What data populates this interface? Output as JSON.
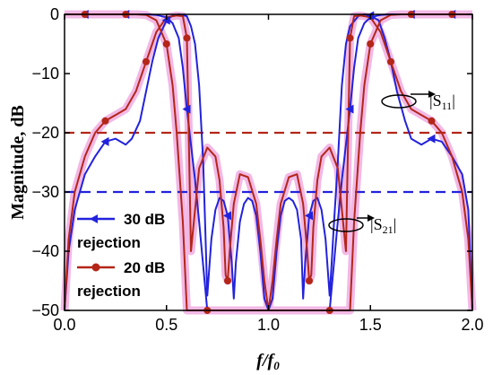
{
  "chart_data": {
    "type": "line",
    "xlabel": "f/f",
    "xlabel_sub": "0",
    "ylabel": "Magnitude, dB",
    "xlim": [
      0.0,
      2.0
    ],
    "ylim": [
      -50,
      0
    ],
    "xticks": [
      "0.0",
      "0.5",
      "1.0",
      "1.5",
      "2.0"
    ],
    "yticks": [
      "0",
      "−10",
      "−20",
      "−30",
      "−40",
      "−50"
    ],
    "grid": false,
    "legend_position": "bottom-left",
    "colors": {
      "blue": "#2222dd",
      "red": "#b32618",
      "highlight": "#f2b8e6"
    },
    "series": [
      {
        "name": "30 dB rejection",
        "name_line1": "30 dB",
        "name_line2": "rejection",
        "color": "#2222dd",
        "marker": "triangle-left",
        "s21": {
          "x": [
            0.0,
            0.02,
            0.05,
            0.1,
            0.15,
            0.2,
            0.25,
            0.3,
            0.33,
            0.37,
            0.4,
            0.43,
            0.46,
            0.5,
            0.53,
            0.56,
            0.6,
            0.62,
            0.64,
            0.66,
            0.68,
            0.69,
            0.7,
            0.72,
            0.74,
            0.76,
            0.78,
            0.8,
            0.82,
            0.83,
            0.84,
            0.86,
            0.88,
            0.9,
            0.92,
            0.94,
            0.96,
            0.98,
            1.0,
            1.02,
            1.04,
            1.06,
            1.08,
            1.1,
            1.12,
            1.14,
            1.16,
            1.17,
            1.18,
            1.2,
            1.22,
            1.24,
            1.26,
            1.28,
            1.3,
            1.31,
            1.32,
            1.34,
            1.36,
            1.38,
            1.4,
            1.44,
            1.47,
            1.5,
            1.54,
            1.57,
            1.6,
            1.63,
            1.67,
            1.7,
            1.75,
            1.8,
            1.85,
            1.9,
            1.95,
            1.98,
            2.0
          ],
          "y": [
            -50,
            -40,
            -33,
            -27,
            -24,
            -21.5,
            -21,
            -22,
            -21,
            -18,
            -13,
            -8,
            -4,
            -1,
            -0.2,
            0,
            -0.3,
            -2,
            -5,
            -12,
            -25,
            -36,
            -47.5,
            -38,
            -33,
            -31,
            -31.5,
            -34,
            -42,
            -48,
            -42,
            -35,
            -32,
            -31,
            -31.5,
            -34,
            -40,
            -48,
            -50,
            -48,
            -40,
            -34,
            -31.5,
            -31,
            -31.5,
            -33,
            -38,
            -48,
            -42,
            -34,
            -31.5,
            -31,
            -33,
            -38,
            -47.5,
            -42,
            -36,
            -25,
            -12,
            -5,
            -2,
            -0.3,
            0,
            -0.2,
            -1,
            -4,
            -8,
            -13,
            -18,
            -21,
            -22,
            -21,
            -21.5,
            -24,
            -27,
            -33,
            -50
          ],
          "markers": [
            0.2,
            0.5,
            0.8,
            1.2,
            1.5,
            1.8
          ]
        },
        "s11": {
          "x": [
            0.0,
            0.2,
            0.4,
            0.45,
            0.5,
            0.53,
            0.56,
            0.58,
            0.6,
            0.62,
            0.64,
            0.66,
            0.7,
            1.3,
            1.34,
            1.36,
            1.38,
            1.4,
            1.42,
            1.44,
            1.47,
            1.5,
            1.55,
            1.6,
            1.8,
            2.0
          ],
          "y": [
            0,
            0,
            0,
            -0.1,
            -0.5,
            -1.5,
            -4,
            -9,
            -16,
            -22,
            -28,
            -35,
            -50,
            -50,
            -35,
            -28,
            -22,
            -16,
            -9,
            -4,
            -1.5,
            -0.5,
            -0.1,
            0,
            0,
            0
          ],
          "markers": [
            0.1,
            0.3,
            0.6,
            1.4,
            1.7,
            1.9
          ]
        }
      },
      {
        "name": "20 dB rejection",
        "name_line1": "20 dB",
        "name_line2": "rejection",
        "color": "#b32618",
        "marker": "circle",
        "s21": {
          "x": [
            0.0,
            0.02,
            0.05,
            0.1,
            0.15,
            0.2,
            0.25,
            0.3,
            0.35,
            0.4,
            0.45,
            0.5,
            0.55,
            0.58,
            0.6,
            0.62,
            0.64,
            0.66,
            0.7,
            0.74,
            0.76,
            0.78,
            0.79,
            0.8,
            0.81,
            0.83,
            0.86,
            0.9,
            0.94,
            0.96,
            0.98,
            1.0,
            1.02,
            1.04,
            1.06,
            1.1,
            1.14,
            1.17,
            1.19,
            1.2,
            1.21,
            1.22,
            1.24,
            1.26,
            1.3,
            1.34,
            1.36,
            1.38,
            1.4,
            1.42,
            1.45,
            1.5,
            1.55,
            1.6,
            1.65,
            1.7,
            1.75,
            1.8,
            1.85,
            1.9,
            1.95,
            1.98,
            2.0
          ],
          "y": [
            -50,
            -38,
            -30,
            -24,
            -20,
            -18,
            -17,
            -16,
            -13,
            -8,
            -3,
            -0.5,
            -0.2,
            -0.3,
            -4,
            -40,
            -33,
            -26,
            -22.5,
            -24,
            -28,
            -36,
            -44,
            -45,
            -40,
            -32,
            -27,
            -27.5,
            -32,
            -38,
            -45,
            -50,
            -45,
            -38,
            -32,
            -27.5,
            -27,
            -32,
            -40,
            -45,
            -44,
            -36,
            -28,
            -24,
            -22.5,
            -26,
            -33,
            -40,
            -4,
            -0.3,
            -0.2,
            -0.5,
            -3,
            -8,
            -13,
            -16,
            -17,
            -18,
            -20,
            -24,
            -30,
            -38,
            -50
          ],
          "markers": [
            0.2,
            0.4,
            0.6,
            0.8,
            1.2,
            1.4,
            1.6,
            1.8
          ]
        },
        "s11": {
          "x": [
            0.0,
            0.2,
            0.35,
            0.4,
            0.45,
            0.5,
            0.53,
            0.55,
            0.58,
            0.6,
            1.4,
            1.42,
            1.45,
            1.47,
            1.5,
            1.55,
            1.6,
            1.65,
            1.8,
            2.0
          ],
          "y": [
            0,
            0,
            0,
            -0.1,
            -1,
            -5,
            -12,
            -20,
            -35,
            -50,
            -50,
            -35,
            -20,
            -12,
            -5,
            -1,
            -0.1,
            0,
            0,
            0
          ],
          "markers": [
            0.1,
            0.3,
            0.5,
            0.7,
            1.3,
            1.5,
            1.7,
            1.9
          ]
        }
      }
    ],
    "reference_lines": [
      {
        "y": -20,
        "color": "#b32618",
        "style": "dashed"
      },
      {
        "y": -30,
        "color": "#2222dd",
        "style": "dashed"
      }
    ],
    "annotations": [
      {
        "label": "S",
        "sub": "11",
        "x": 1.72,
        "y": -12
      },
      {
        "label": "S",
        "sub": "21",
        "x": 1.46,
        "y": -34
      }
    ]
  }
}
